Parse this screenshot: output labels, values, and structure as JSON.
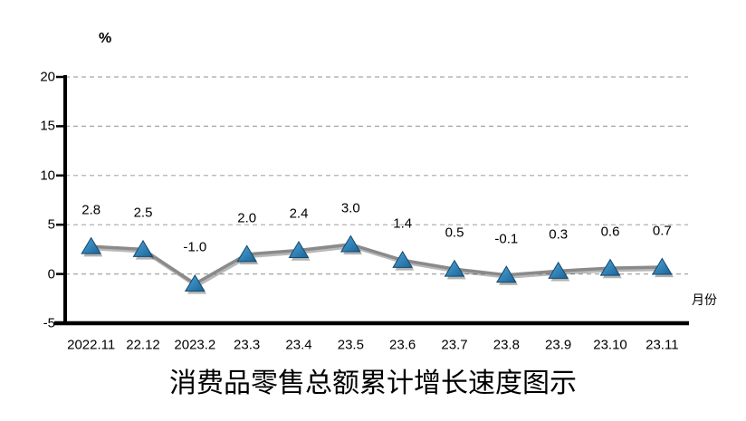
{
  "chart_data": {
    "type": "line",
    "title": "消费品零售总额累计增长速度图示",
    "y_unit_label": "%",
    "x_axis_label": "月份",
    "categories": [
      "2022.11",
      "22.12",
      "2023.2",
      "23.3",
      "23.4",
      "23.5",
      "23.6",
      "23.7",
      "23.8",
      "23.9",
      "23.10",
      "23.11"
    ],
    "values": [
      2.8,
      2.5,
      -1.0,
      2.0,
      2.4,
      3.0,
      1.4,
      0.5,
      -0.1,
      0.3,
      0.6,
      0.7
    ],
    "data_labels": [
      "2.8",
      "2.5",
      "-1.0",
      "2.0",
      "2.4",
      "3.0",
      "1.4",
      "0.5",
      "-0.1",
      "0.3",
      "0.6",
      "0.7"
    ],
    "ylim": [
      -5,
      20
    ],
    "yticks": [
      20,
      15,
      10,
      5,
      0,
      -5
    ],
    "grid": "horizontal-dashed",
    "legend_position": "none",
    "marker": "triangle",
    "colors": {
      "line": "#8a8a8a",
      "marker_fill_light": "#4da6db",
      "marker_fill_dark": "#1a6396",
      "marker_edge": "#14486b",
      "grid": "#a6a6a6",
      "axis": "#000000",
      "text": "#000000",
      "background": "#ffffff"
    }
  }
}
